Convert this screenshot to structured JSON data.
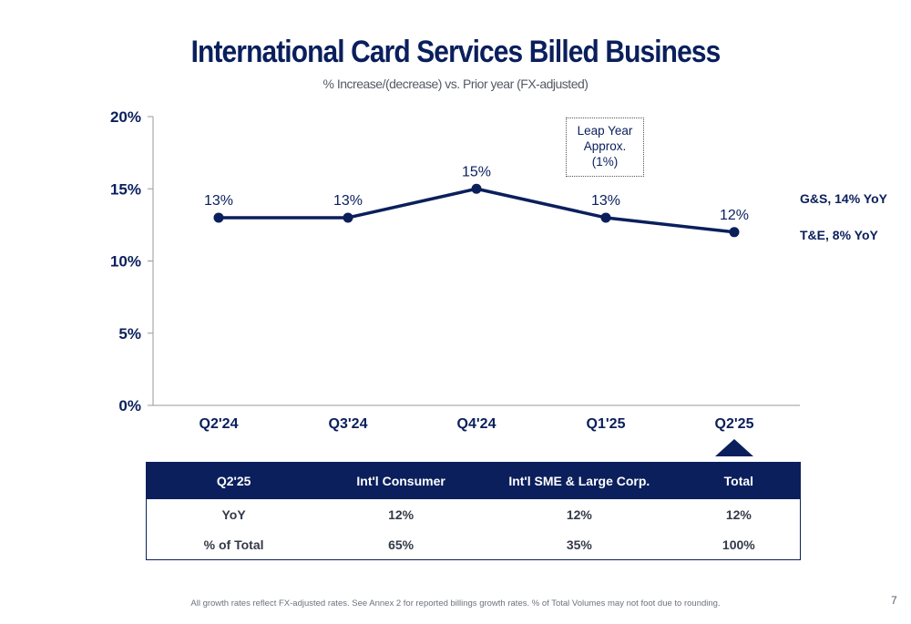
{
  "title": "International Card Services Billed Business",
  "subtitle": "% Increase/(decrease) vs. Prior year (FX-adjusted)",
  "chart_data": {
    "type": "line",
    "categories": [
      "Q2'24",
      "Q3'24",
      "Q4'24",
      "Q1'25",
      "Q2'25"
    ],
    "series": [
      {
        "values": [
          13,
          13,
          15,
          13,
          12
        ]
      }
    ],
    "data_labels": [
      "13%",
      "13%",
      "15%",
      "13%",
      "12%"
    ],
    "y_ticks": [
      "0%",
      "5%",
      "10%",
      "15%",
      "20%"
    ],
    "ylim": [
      0,
      20
    ],
    "grid": false,
    "line_color": "#0a1f5c",
    "annotations": [
      {
        "text_lines": [
          "Leap Year",
          "Approx.",
          "(1%)"
        ],
        "near": "Q1'25"
      }
    ],
    "side_notes": [
      "G&S, 14% YoY",
      "T&E, 8% YoY"
    ],
    "highlight_category": "Q2'25"
  },
  "table": {
    "headers": [
      "Q2'25",
      "Int'l Consumer",
      "Int'l SME & Large Corp.",
      "Total"
    ],
    "rows": [
      [
        "YoY",
        "12%",
        "12%",
        "12%"
      ],
      [
        "% of Total",
        "65%",
        "35%",
        "100%"
      ]
    ]
  },
  "footnote": "All growth rates reflect FX-adjusted rates. See Annex 2 for reported billings growth rates. % of Total Volumes may not foot due to rounding.",
  "page_number": "7",
  "colors": {
    "navy": "#0a1f5c",
    "axis": "#999999"
  }
}
